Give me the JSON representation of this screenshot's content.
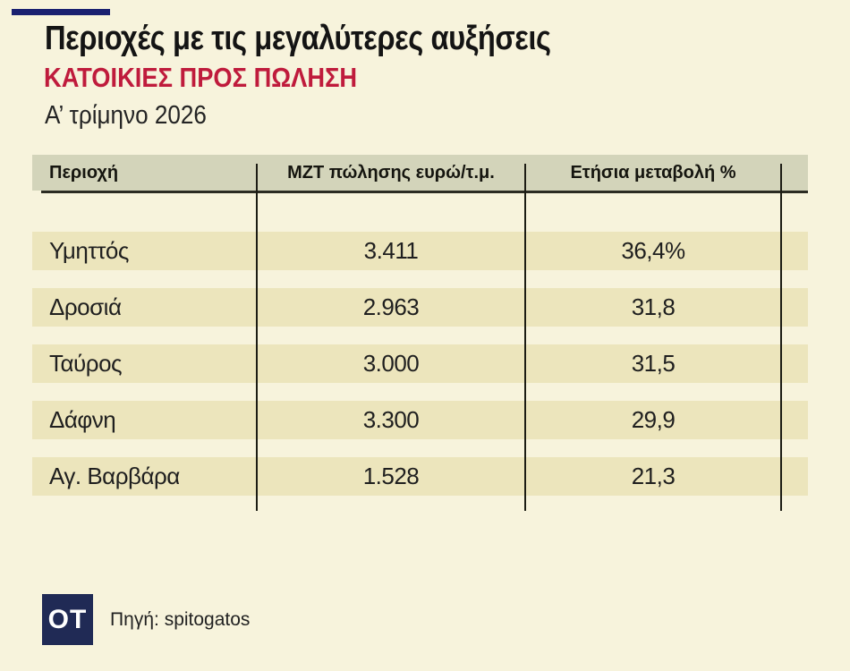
{
  "page": {
    "background_color": "#f7f3dc",
    "accent_bar_color": "#1a2070"
  },
  "header": {
    "title": "Περιοχές με τις μεγαλύτερες αυξήσεις",
    "subtitle": "ΚΑΤΟΙΚΙΕΣ ΠΡΟΣ ΠΩΛΗΣΗ",
    "subtitle_color": "#bf1b3c",
    "period": "Α’ τρίμηνο 2026"
  },
  "table": {
    "header_bg_color": "#d3d4ba",
    "row_bg_color": "#ece5bc",
    "columns": [
      "Περιοχή",
      "ΜΖΤ πώλησης ευρώ/τ.μ.",
      "Ετήσια μεταβολή %"
    ],
    "rows": [
      {
        "region": "Υμηττός",
        "price": "3.411",
        "change": "36,4%"
      },
      {
        "region": "Δροσιά",
        "price": "2.963",
        "change": "31,8"
      },
      {
        "region": "Ταύρος",
        "price": "3.000",
        "change": "31,5"
      },
      {
        "region": "Δάφνη",
        "price": "3.300",
        "change": "29,9"
      },
      {
        "region": "Αγ. Βαρβάρα",
        "price": "1.528",
        "change": "21,3"
      }
    ]
  },
  "footer": {
    "logo_text": "OT",
    "logo_bg_color": "#202a55",
    "source": "Πηγή: spitogatos"
  },
  "chart_data": {
    "type": "table",
    "title": "Περιοχές με τις μεγαλύτερες αυξήσεις",
    "subtitle": "ΚΑΤΟΙΚΙΕΣ ΠΡΟΣ ΠΩΛΗΣΗ",
    "period": "Α’ τρίμηνο 2026",
    "columns": [
      "Περιοχή",
      "ΜΖΤ πώλησης ευρώ/τ.μ.",
      "Ετήσια μεταβολή %"
    ],
    "rows": [
      [
        "Υμηττός",
        "3.411",
        "36,4%"
      ],
      [
        "Δροσιά",
        "2.963",
        "31,8"
      ],
      [
        "Ταύρος",
        "3.000",
        "31,5"
      ],
      [
        "Δάφνη",
        "3.300",
        "29,9"
      ],
      [
        "Αγ. Βαρβάρα",
        "1.528",
        "21,3"
      ]
    ],
    "prices_eur_per_sqm": [
      3411,
      2963,
      3000,
      3300,
      1528
    ],
    "annual_change_pct": [
      36.4,
      31.8,
      31.5,
      29.9,
      21.3
    ],
    "source": "Πηγή: spitogatos"
  }
}
